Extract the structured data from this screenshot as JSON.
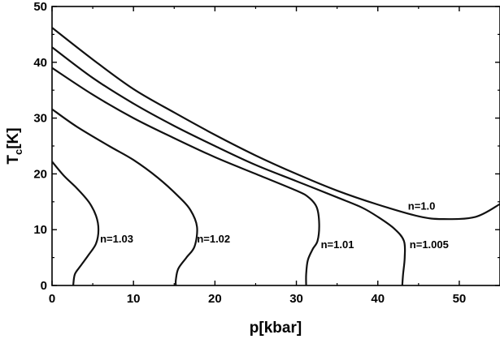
{
  "chart_data": {
    "type": "line",
    "xlabel": "p[kbar]",
    "ylabel": {
      "main": "T",
      "sub": "c",
      "rest": "[K]"
    },
    "xlim": [
      0,
      55
    ],
    "ylim": [
      0,
      50
    ],
    "x_ticks": [
      0,
      10,
      20,
      30,
      40,
      50
    ],
    "y_ticks": [
      0,
      10,
      20,
      30,
      40,
      50
    ],
    "minor_x_ticks": [
      5,
      15,
      25,
      35,
      45
    ],
    "minor_y_ticks": [
      5,
      15,
      25,
      35,
      45
    ],
    "grid": false,
    "series": [
      {
        "name": "n=1.0",
        "label": "n=1.0",
        "points": [
          [
            0,
            46.2
          ],
          [
            5,
            40.5
          ],
          [
            10,
            35.2
          ],
          [
            15,
            31.0
          ],
          [
            20,
            27.0
          ],
          [
            25,
            23.3
          ],
          [
            30,
            20.0
          ],
          [
            35,
            17.0
          ],
          [
            40,
            14.5
          ],
          [
            45,
            12.4
          ],
          [
            48,
            11.9
          ],
          [
            52,
            12.3
          ],
          [
            55,
            14.6
          ]
        ]
      },
      {
        "name": "n=1.005",
        "label": "n=1.005",
        "points": [
          [
            0,
            42.7
          ],
          [
            5,
            37.2
          ],
          [
            10,
            32.6
          ],
          [
            15,
            28.6
          ],
          [
            20,
            25.0
          ],
          [
            25,
            21.6
          ],
          [
            30,
            18.7
          ],
          [
            35,
            15.8
          ],
          [
            38,
            14.0
          ],
          [
            40,
            12.3
          ],
          [
            42,
            10.2
          ],
          [
            43.2,
            8.0
          ],
          [
            43.3,
            5.0
          ],
          [
            43.1,
            2.0
          ],
          [
            43.0,
            0.0
          ]
        ]
      },
      {
        "name": "n=1.01",
        "label": "n=1.01",
        "points": [
          [
            0,
            39.0
          ],
          [
            5,
            34.2
          ],
          [
            10,
            30.0
          ],
          [
            15,
            26.4
          ],
          [
            20,
            23.0
          ],
          [
            25,
            20.0
          ],
          [
            30,
            17.0
          ],
          [
            31.5,
            15.8
          ],
          [
            32.5,
            14.0
          ],
          [
            32.8,
            11.0
          ],
          [
            32.6,
            8.0
          ],
          [
            32.0,
            6.5
          ],
          [
            31.4,
            4.5
          ],
          [
            31.2,
            2.0
          ],
          [
            31.2,
            0.0
          ]
        ]
      },
      {
        "name": "n=1.02",
        "label": "n=1.02",
        "points": [
          [
            0,
            31.6
          ],
          [
            3,
            28.5
          ],
          [
            7,
            25.0
          ],
          [
            10,
            22.5
          ],
          [
            13,
            19.3
          ],
          [
            15.5,
            16.0
          ],
          [
            17,
            13.5
          ],
          [
            17.8,
            10.5
          ],
          [
            17.5,
            7.0
          ],
          [
            16.5,
            5.0
          ],
          [
            15.5,
            3.0
          ],
          [
            15.2,
            1.0
          ],
          [
            15.2,
            0.0
          ]
        ]
      },
      {
        "name": "n=1.03",
        "label": "n=1.03",
        "points": [
          [
            0,
            22.2
          ],
          [
            1.5,
            19.6
          ],
          [
            3.0,
            17.5
          ],
          [
            4.5,
            15.0
          ],
          [
            5.4,
            12.5
          ],
          [
            5.7,
            10.0
          ],
          [
            5.4,
            7.5
          ],
          [
            4.5,
            5.5
          ],
          [
            3.5,
            3.5
          ],
          [
            2.8,
            2.0
          ],
          [
            2.6,
            0.0
          ]
        ]
      }
    ],
    "annotations": [
      {
        "text": "n=1.03",
        "x": 5.9,
        "y": 7.7
      },
      {
        "text": "n=1.02",
        "x": 17.8,
        "y": 7.7
      },
      {
        "text": "n=1.01",
        "x": 33.0,
        "y": 6.7
      },
      {
        "text": "n=1.005",
        "x": 43.9,
        "y": 6.7
      },
      {
        "text": "n=1.0",
        "x": 43.7,
        "y": 13.6
      }
    ]
  }
}
